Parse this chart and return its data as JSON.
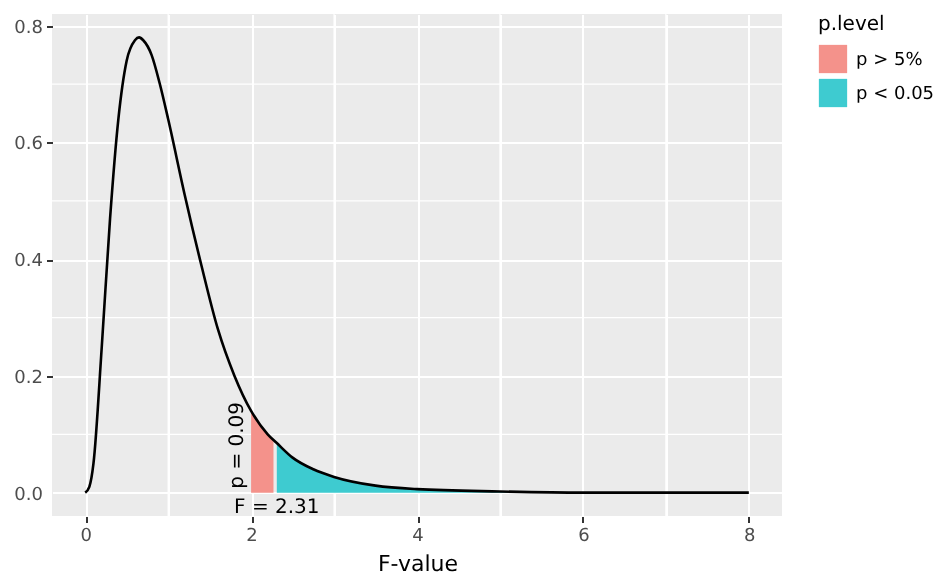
{
  "chart_data": {
    "type": "line",
    "xlabel": "F-value",
    "ylabel": null,
    "legend_title": "p.level",
    "legend": "right",
    "grid": true,
    "marker": "none",
    "line_style": "solid",
    "xlim": [
      -0.4,
      8.4
    ],
    "ylim": [
      -0.04,
      0.82
    ],
    "xticks": [
      0,
      {
        "value": 1,
        "label": null
      },
      2,
      {
        "value": 3,
        "label": null
      },
      4,
      {
        "value": 5,
        "label": null
      },
      6,
      {
        "value": 7,
        "label": null
      },
      8
    ],
    "yticks": [
      {
        "value": 0,
        "label": "0.0"
      },
      {
        "value": 0.1,
        "label": null
      },
      0.2,
      {
        "value": 0.3,
        "label": null
      },
      0.4,
      {
        "value": 0.5,
        "label": null
      },
      0.6,
      {
        "value": 0.7,
        "label": null
      },
      0.8
    ],
    "series": [
      {
        "color": "#000000",
        "x": [
          0,
          0.05,
          0.1,
          0.2,
          0.3,
          0.4,
          0.5,
          0.6,
          0.65,
          0.7,
          0.8,
          0.9,
          1.0,
          1.2,
          1.4,
          1.6,
          1.8,
          2.0,
          2.2,
          2.31,
          2.5,
          2.75,
          3.0,
          3.5,
          4.0,
          5.0,
          6.0,
          7.0,
          8.0
        ],
        "values": [
          0,
          0.01,
          0.05,
          0.25,
          0.47,
          0.64,
          0.74,
          0.775,
          0.78,
          0.775,
          0.75,
          0.7,
          0.64,
          0.51,
          0.39,
          0.28,
          0.2,
          0.14,
          0.1,
          0.085,
          0.06,
          0.04,
          0.027,
          0.012,
          0.006,
          0.002,
          0,
          0,
          0
        ]
      },
      {
        "type": "area",
        "name": "p > 5%",
        "color": "#f4928b",
        "x": [
          2.0,
          2.1,
          2.2,
          2.27
        ],
        "values": [
          0.14,
          0.12,
          0.1,
          0.09
        ]
      },
      {
        "type": "area",
        "name": "p < 0.05",
        "color": "#3ecbd0",
        "x": [
          2.31,
          2.5,
          2.75,
          3.0,
          3.5,
          4.0,
          5.0,
          6.0,
          7.0,
          8.0
        ],
        "values": [
          0.085,
          0.06,
          0.04,
          0.027,
          0.012,
          0.006,
          0.002,
          0,
          0,
          0
        ]
      }
    ],
    "annotations": [
      "p = 0.09",
      "F = 2.31"
    ]
  }
}
